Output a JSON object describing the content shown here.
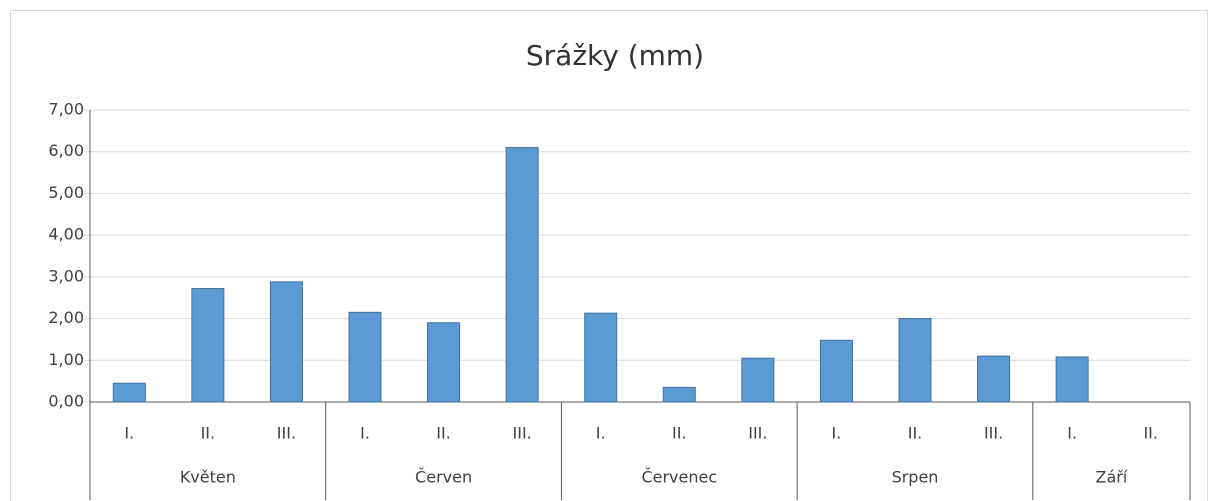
{
  "chart_data": {
    "type": "bar",
    "title": "Srážky (mm)",
    "color": "#5b9bd5",
    "groups": [
      {
        "name": "Květen",
        "categories": [
          "I.",
          "II.",
          "III."
        ],
        "values": [
          0.45,
          2.72,
          2.88
        ]
      },
      {
        "name": "Červen",
        "categories": [
          "I.",
          "II.",
          "III."
        ],
        "values": [
          2.15,
          1.9,
          6.1
        ]
      },
      {
        "name": "Červenec",
        "categories": [
          "I.",
          "II.",
          "III."
        ],
        "values": [
          2.13,
          0.35,
          1.05
        ]
      },
      {
        "name": "Srpen",
        "categories": [
          "I.",
          "II.",
          "III."
        ],
        "values": [
          1.48,
          2.0,
          1.1
        ]
      },
      {
        "name": "Září",
        "categories": [
          "I.",
          "II."
        ],
        "values": [
          1.08,
          0
        ]
      }
    ],
    "ylim": [
      0,
      7
    ],
    "yticks": [
      {
        "value": 0,
        "label": "0,00"
      },
      {
        "value": 1,
        "label": "1,00"
      },
      {
        "value": 2,
        "label": "2,00"
      },
      {
        "value": 3,
        "label": "3,00"
      },
      {
        "value": 4,
        "label": "4,00"
      },
      {
        "value": 5,
        "label": "5,00"
      },
      {
        "value": 6,
        "label": "6,00"
      },
      {
        "value": 7,
        "label": "7,00"
      }
    ],
    "grid": true
  }
}
